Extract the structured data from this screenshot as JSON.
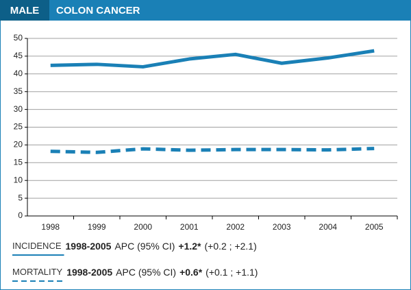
{
  "chart_data": {
    "type": "line",
    "subtitle": "MALE",
    "title": "COLON CANCER",
    "categories": [
      "1998",
      "1999",
      "2000",
      "2001",
      "2002",
      "2003",
      "2004",
      "2005"
    ],
    "series": [
      {
        "name": "INCIDENCE",
        "color": "#1a80b6",
        "style": "solid",
        "values": [
          42.4,
          42.7,
          42.0,
          44.2,
          45.5,
          43.0,
          44.5,
          46.5
        ]
      },
      {
        "name": "MORTALITY",
        "color": "#1a80b6",
        "style": "dashed",
        "values": [
          18.2,
          17.9,
          18.9,
          18.5,
          18.7,
          18.7,
          18.6,
          19.0
        ]
      }
    ],
    "annotations": [
      {
        "period": "1998-2005",
        "measure": "APC (95% CI)",
        "apc": "+1.2*",
        "ci": "(+0.2 ; +2.1)"
      },
      {
        "period": "1998-2005",
        "measure": "APC (95% CI)",
        "apc": "+0.6*",
        "ci": "(+0.1 ; +1.1)"
      }
    ],
    "ylim": [
      0,
      50
    ],
    "yticks": [
      0,
      5,
      10,
      15,
      20,
      25,
      30,
      35,
      40,
      45,
      50
    ],
    "grid": true
  }
}
